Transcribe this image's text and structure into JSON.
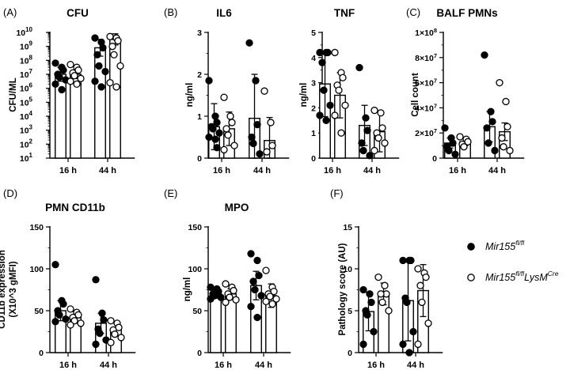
{
  "legend": {
    "items": [
      {
        "marker": "filled",
        "name": "Mir155",
        "sup": "fl/fl",
        "suffix": "",
        "suffix_sup": ""
      },
      {
        "marker": "open",
        "name": "Mir155",
        "sup": "fl/fl",
        "suffix": "LysM",
        "suffix_sup": "Cre"
      }
    ]
  },
  "chart_data": [
    {
      "panel": "(A)",
      "title": "CFU",
      "type": "bar",
      "scale": "log10",
      "ylabel": "CFU/ML",
      "ylim_exp": [
        1,
        10
      ],
      "ytick_labels": [
        {
          "base": "10",
          "exp": "1"
        },
        {
          "base": "10",
          "exp": "2"
        },
        {
          "base": "10",
          "exp": "3"
        },
        {
          "base": "10",
          "exp": "4"
        },
        {
          "base": "10",
          "exp": "5"
        },
        {
          "base": "10",
          "exp": "6"
        },
        {
          "base": "10",
          "exp": "7"
        },
        {
          "base": "10",
          "exp": "8"
        },
        {
          "base": "10",
          "exp": "9"
        },
        {
          "base": "10",
          "exp": "10"
        }
      ],
      "categories": [
        "16 h",
        "44 h"
      ],
      "series": [
        {
          "name": "Mir155 fl/fl",
          "marker": "filled",
          "mean": [
            7.0,
            8.9
          ],
          "err": [
            0.5,
            0.6
          ],
          "points": [
            [
              7.8,
              7.5,
              7.3,
              7.0,
              6.8,
              6.6,
              6.3,
              5.9
            ],
            [
              9.6,
              9.3,
              8.9,
              8.4,
              7.6,
              7.2,
              6.5,
              6.1
            ]
          ]
        },
        {
          "name": "Mir155 fl/fl LysM Cre",
          "marker": "open",
          "mean": [
            7.0,
            9.5
          ],
          "err": [
            0.3,
            0.4
          ],
          "points": [
            [
              7.7,
              7.5,
              7.3,
              7.1,
              6.9,
              6.7,
              6.5,
              6.3
            ],
            [
              9.7,
              9.6,
              9.4,
              9.0,
              8.4,
              7.6,
              6.4,
              6.1
            ]
          ]
        }
      ]
    },
    {
      "panel": "(B)",
      "title": "IL6",
      "type": "bar",
      "ylabel": "ng/ml",
      "ylim": [
        0,
        3
      ],
      "yticks": [
        0,
        1,
        2,
        3
      ],
      "ytick_labels": [
        "0",
        "1",
        "2",
        "3"
      ],
      "categories": [
        "16 h",
        "44 h"
      ],
      "series": [
        {
          "name": "Mir155 fl/fl",
          "marker": "filled",
          "mean": [
            0.75,
            0.95
          ],
          "err": [
            0.55,
            1.05
          ],
          "points": [
            [
              1.85,
              1.0,
              0.85,
              0.75,
              0.7,
              0.6,
              0.5,
              0.45,
              0.25
            ],
            [
              2.75,
              1.85,
              0.8,
              0.5,
              0.35,
              0.1
            ]
          ]
        },
        {
          "name": "Mir155 fl/fl LysM Cre",
          "marker": "open",
          "mean": [
            0.7,
            0.42
          ],
          "err": [
            0.4,
            0.55
          ],
          "points": [
            [
              1.45,
              1.0,
              0.85,
              0.7,
              0.55,
              0.3,
              0.2
            ],
            [
              1.6,
              0.85,
              0.3,
              0.15
            ]
          ]
        }
      ]
    },
    {
      "panel": "",
      "title": "TNF",
      "type": "bar",
      "ylabel": "ng/ml",
      "ylim": [
        0,
        5
      ],
      "yticks": [
        0,
        1,
        2,
        3,
        4,
        5
      ],
      "ytick_labels": [
        "0",
        "1",
        "2",
        "3",
        "4",
        "5"
      ],
      "categories": [
        "16 h",
        "44 h"
      ],
      "series": [
        {
          "name": "Mir155 fl/fl",
          "marker": "filled",
          "mean": [
            2.95,
            1.3
          ],
          "err": [
            1.3,
            0.8
          ],
          "points": [
            [
              4.2,
              4.2,
              4.2,
              3.8,
              2.7,
              2.1,
              1.7,
              1.5
            ],
            [
              3.6,
              1.6,
              1.1,
              0.6,
              0.3,
              0.1
            ]
          ]
        },
        {
          "name": "Mir155 fl/fl LysM Cre",
          "marker": "open",
          "mean": [
            2.5,
            1.05
          ],
          "err": [
            0.9,
            0.8
          ],
          "points": [
            [
              4.2,
              3.4,
              3.2,
              2.9,
              2.7,
              2.1,
              1.7,
              1.0
            ],
            [
              1.9,
              1.8,
              1.2,
              1.0,
              0.8,
              0.6,
              0.3
            ]
          ]
        }
      ]
    },
    {
      "panel": "(C)",
      "title": "BALF PMNs",
      "type": "bar",
      "ylabel": "Cell count",
      "ylim": [
        0,
        100000000
      ],
      "yticks": [
        0,
        20000000,
        40000000,
        60000000,
        80000000,
        100000000
      ],
      "ytick_labels": [
        {
          "base": "0",
          "exp": ""
        },
        {
          "base": "2×10",
          "exp": "7"
        },
        {
          "base": "4×10",
          "exp": "7"
        },
        {
          "base": "6×10",
          "exp": "7"
        },
        {
          "base": "8×10",
          "exp": "7"
        },
        {
          "base": "1×10",
          "exp": "8"
        }
      ],
      "categories": [
        "16 h",
        "44 h"
      ],
      "series": [
        {
          "name": "Mir155 fl/fl",
          "marker": "filled",
          "mean": [
            12000000,
            25000000
          ],
          "err": [
            4000000,
            12000000
          ],
          "points": [
            [
              24000000,
              16000000,
              12000000,
              9000000,
              6000000,
              3000000
            ],
            [
              82000000,
              37000000,
              29000000,
              24000000,
              12000000,
              6000000
            ]
          ]
        },
        {
          "name": "Mir155 fl/fl LysM Cre",
          "marker": "open",
          "mean": [
            13000000,
            21000000
          ],
          "err": [
            3000000,
            7000000
          ],
          "points": [
            [
              17000000,
              15000000,
              13000000,
              11000000,
              9000000
            ],
            [
              60000000,
              45000000,
              25000000,
              16000000,
              9000000,
              6000000
            ]
          ]
        }
      ]
    },
    {
      "panel": "(D)",
      "title": "PMN CD11b",
      "type": "bar",
      "ylabel": [
        "CD11b expression",
        "(X10^3 gMFI)"
      ],
      "ylim": [
        0,
        150
      ],
      "yticks": [
        0,
        50,
        100,
        150
      ],
      "ytick_labels": [
        "0",
        "50",
        "100",
        "150"
      ],
      "categories": [
        "16 h",
        "44 h"
      ],
      "series": [
        {
          "name": "Mir155 fl/fl",
          "marker": "filled",
          "mean": [
            50,
            35
          ],
          "err": [
            12,
            12
          ],
          "points": [
            [
              105,
              62,
              58,
              50,
              45,
              40,
              37
            ],
            [
              87,
              47,
              39,
              28,
              23,
              15,
              10
            ]
          ]
        },
        {
          "name": "Mir155 fl/fl LysM Cre",
          "marker": "open",
          "mean": [
            42,
            28
          ],
          "err": [
            7,
            8
          ],
          "points": [
            [
              52,
              48,
              45,
              42,
              38,
              35,
              33
            ],
            [
              38,
              35,
              30,
              27,
              22,
              18,
              12
            ]
          ]
        }
      ]
    },
    {
      "panel": "(E)",
      "title": "MPO",
      "type": "bar",
      "ylabel": "ng/ml",
      "ylim": [
        0,
        150
      ],
      "yticks": [
        0,
        50,
        100,
        150
      ],
      "ytick_labels": [
        "0",
        "50",
        "100",
        "150"
      ],
      "categories": [
        "16 h",
        "44 h"
      ],
      "series": [
        {
          "name": "Mir155 fl/fl",
          "marker": "filled",
          "mean": [
            70,
            80
          ],
          "err": [
            5,
            17
          ],
          "points": [
            [
              78,
              76,
              73,
              70,
              68,
              66,
              64
            ],
            [
              118,
              110,
              92,
              85,
              75,
              68,
              55,
              42
            ]
          ]
        },
        {
          "name": "Mir155 fl/fl LysM Cre",
          "marker": "open",
          "mean": [
            70,
            68
          ],
          "err": [
            6,
            14
          ],
          "points": [
            [
              82,
              78,
              74,
              70,
              66,
              63,
              60
            ],
            [
              98,
              78,
              73,
              70,
              67,
              64,
              61,
              58
            ]
          ]
        }
      ]
    },
    {
      "panel": "(F)",
      "title": "",
      "type": "bar",
      "ylabel": "Pathology score (AU)",
      "ylim": [
        0,
        15
      ],
      "yticks": [
        0,
        5,
        10,
        15
      ],
      "ytick_labels": [
        "0",
        "5",
        "10",
        "15"
      ],
      "categories": [
        "16 h",
        "44 h"
      ],
      "series": [
        {
          "name": "Mir155 fl/fl",
          "marker": "filled",
          "mean": [
            4.9,
            6.2
          ],
          "err": [
            2.3,
            4.8
          ],
          "points": [
            [
              7.5,
              7,
              6,
              5,
              4.5,
              2.5,
              1
            ],
            [
              11,
              11,
              11,
              6.5,
              6,
              2.5,
              1,
              0
            ]
          ]
        },
        {
          "name": "Mir155 fl/fl LysM Cre",
          "marker": "open",
          "mean": [
            7,
            7.4
          ],
          "err": [
            1.3,
            3.1
          ],
          "points": [
            [
              9,
              8,
              7,
              7,
              6,
              5
            ],
            [
              10,
              9.5,
              9,
              8,
              6,
              3.5,
              1
            ]
          ]
        }
      ]
    }
  ]
}
